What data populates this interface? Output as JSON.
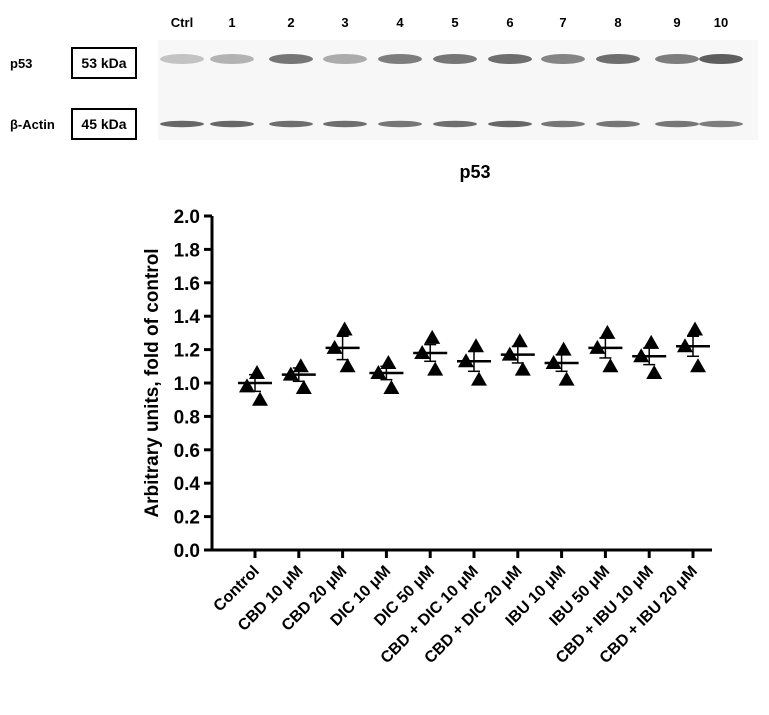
{
  "blot": {
    "lanes": [
      "Ctrl",
      "1",
      "2",
      "3",
      "4",
      "5",
      "6",
      "7",
      "8",
      "9",
      "10"
    ],
    "rows": [
      {
        "protein": "p53",
        "kda": "53 kDa",
        "intensity": [
          0.25,
          0.35,
          0.75,
          0.4,
          0.7,
          0.75,
          0.8,
          0.65,
          0.8,
          0.7,
          0.9
        ]
      },
      {
        "protein": "β-Actin",
        "kda": "45 kDa",
        "intensity": [
          0.85,
          0.85,
          0.8,
          0.8,
          0.75,
          0.8,
          0.85,
          0.75,
          0.75,
          0.75,
          0.7
        ]
      }
    ]
  },
  "chart_data": {
    "type": "scatter",
    "title": "p53",
    "xlabel": "",
    "ylabel": "Arbitrary units, fold of control",
    "ylim": [
      0,
      2.0
    ],
    "yticks": [
      "0.0",
      "0.2",
      "0.4",
      "0.6",
      "0.8",
      "1.0",
      "1.2",
      "1.4",
      "1.6",
      "1.8",
      "2.0"
    ],
    "categories": [
      "Control",
      "CBD 10 μM",
      "CBD 20 μM",
      "DIC 10 μM",
      "DIC 50 μM",
      "CBD + DIC 10 μM",
      "CBD + DIC 20 μM",
      "IBU 10 μM",
      "IBU 50 μM",
      "CBD + IBU 10 μM",
      "CBD + IBU 20 μM"
    ],
    "means": [
      1.0,
      1.05,
      1.21,
      1.06,
      1.18,
      1.13,
      1.17,
      1.12,
      1.21,
      1.16,
      1.22
    ],
    "sems": [
      0.05,
      0.04,
      0.07,
      0.04,
      0.05,
      0.06,
      0.05,
      0.05,
      0.06,
      0.05,
      0.06
    ],
    "points": [
      [
        1.06,
        0.98,
        0.9
      ],
      [
        1.1,
        1.05,
        0.97
      ],
      [
        1.32,
        1.21,
        1.1
      ],
      [
        1.12,
        1.06,
        0.97
      ],
      [
        1.27,
        1.18,
        1.08
      ],
      [
        1.22,
        1.13,
        1.02
      ],
      [
        1.25,
        1.17,
        1.08
      ],
      [
        1.2,
        1.12,
        1.02
      ],
      [
        1.3,
        1.21,
        1.1
      ],
      [
        1.24,
        1.16,
        1.06
      ],
      [
        1.32,
        1.22,
        1.1
      ]
    ],
    "marker": "triangle",
    "color": "#000000"
  }
}
